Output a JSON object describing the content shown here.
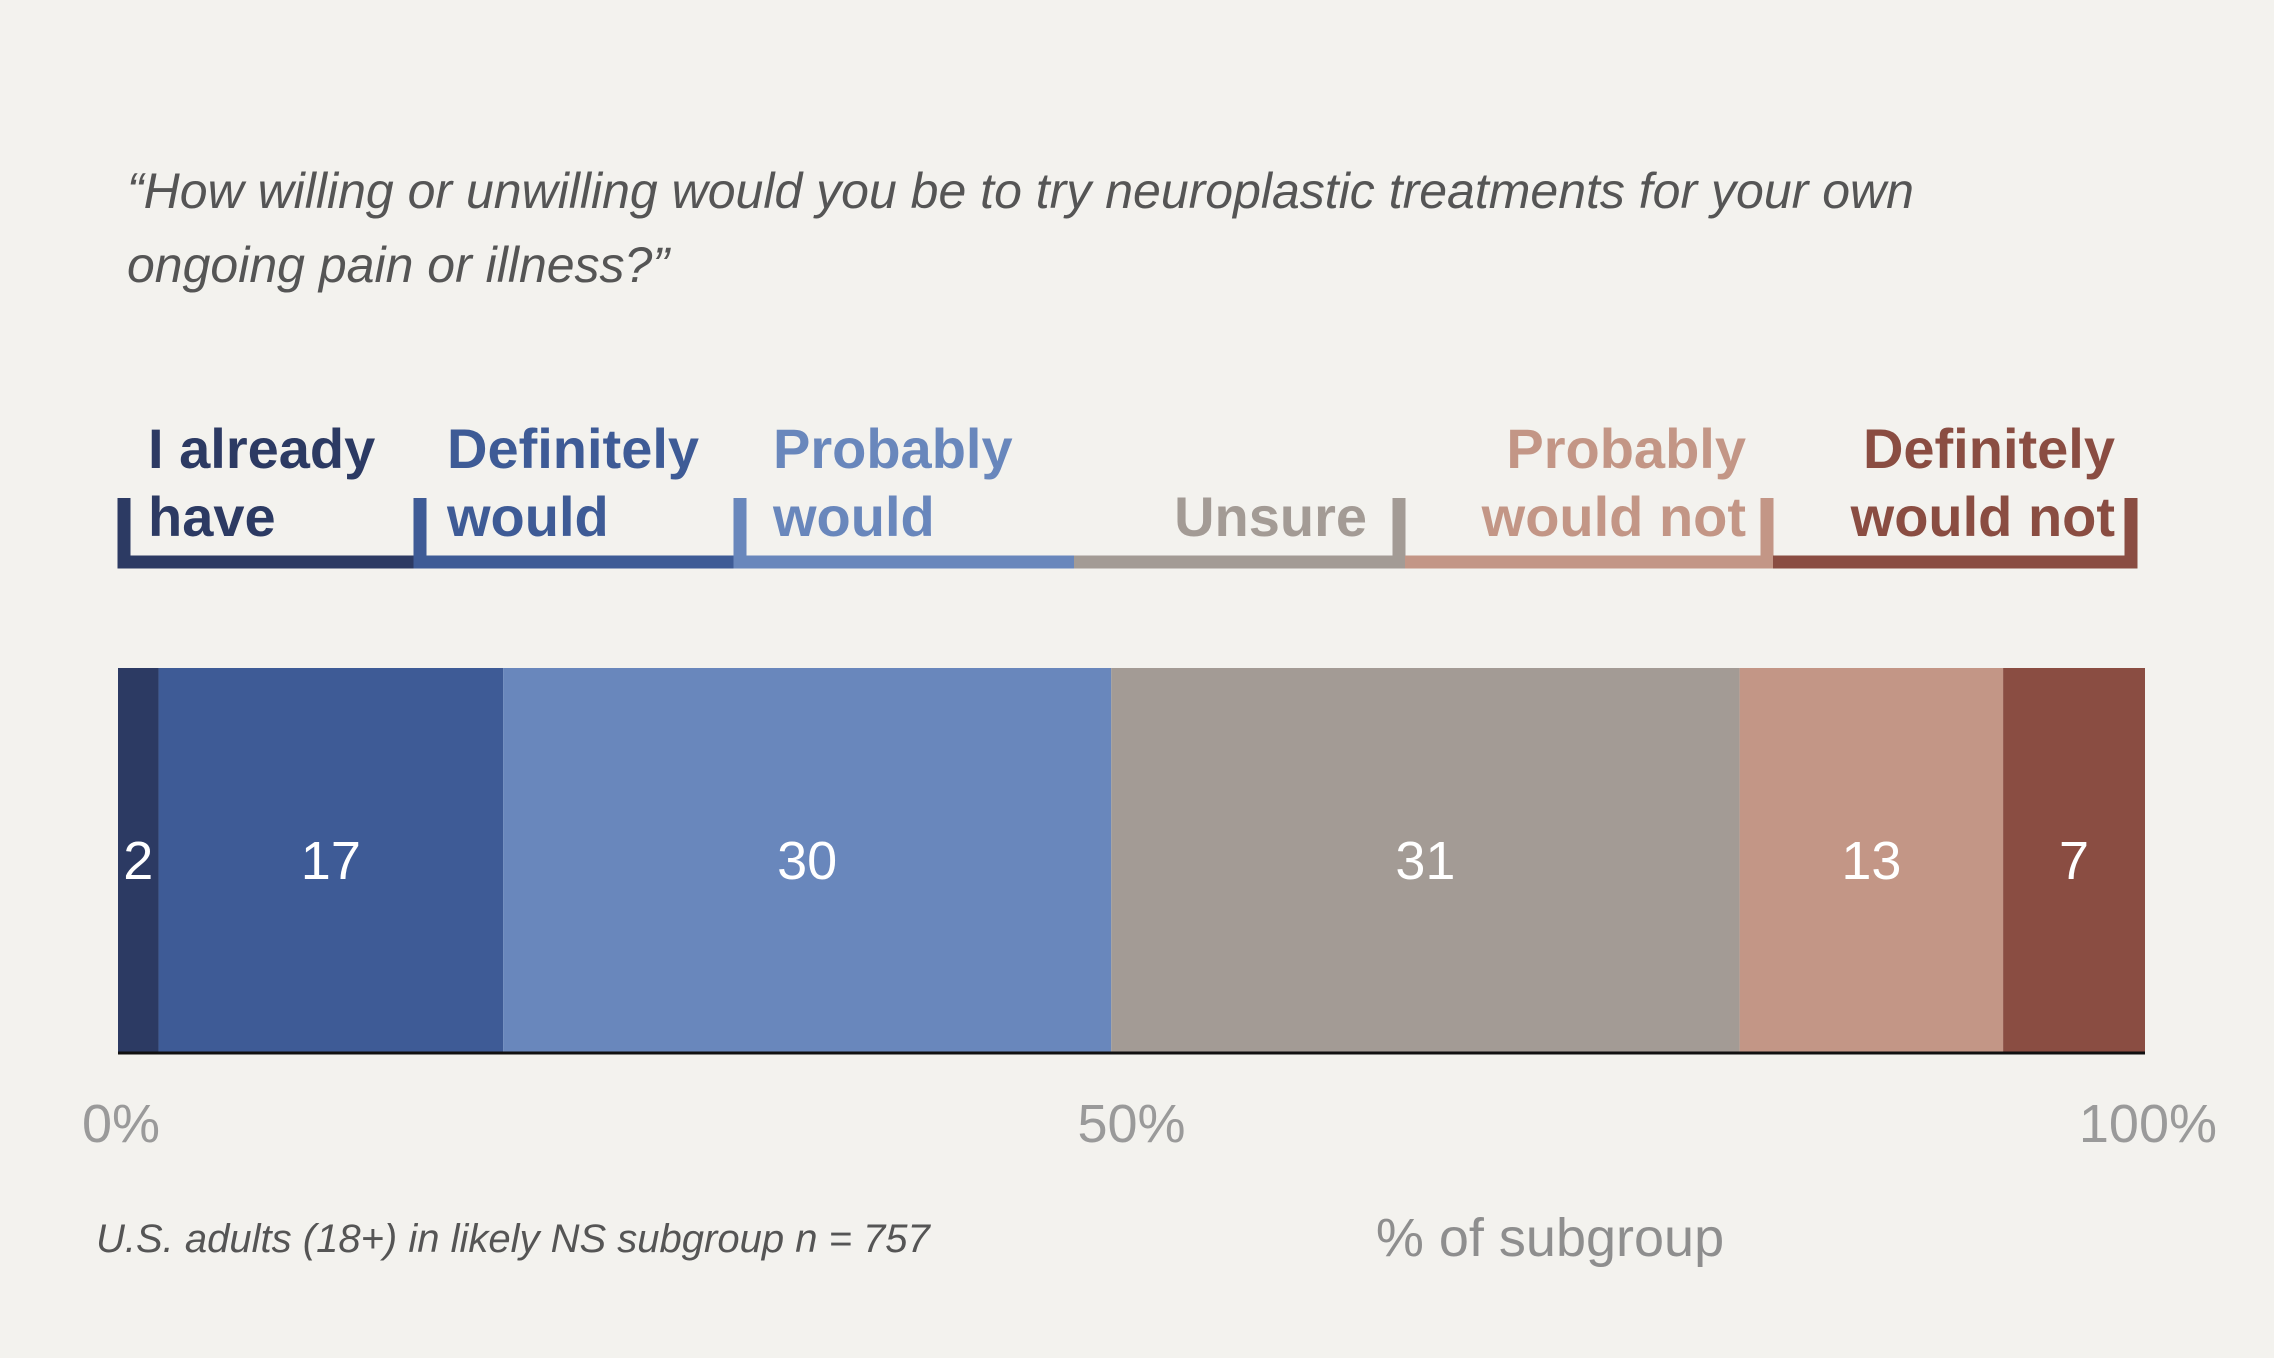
{
  "chart_data": {
    "type": "bar",
    "orientation": "horizontal-stacked",
    "title_lines": [
      "“How willing or unwilling would you be to try neuroplastic treatments for your own",
      "ongoing pain or illness?”"
    ],
    "categories": [
      {
        "name_lines": [
          "I already",
          "have"
        ],
        "value": 2,
        "color": "#2c3a63"
      },
      {
        "name_lines": [
          "Definitely",
          "would"
        ],
        "value": 17,
        "color": "#3e5b96"
      },
      {
        "name_lines": [
          "Probably",
          "would"
        ],
        "value": 30,
        "color": "#6987bc"
      },
      {
        "name_lines": [
          "Unsure"
        ],
        "value": 31,
        "color": "#a39b95"
      },
      {
        "name_lines": [
          "Probably",
          "would not"
        ],
        "value": 13,
        "color": "#c39686"
      },
      {
        "name_lines": [
          "Definitely",
          "would not"
        ],
        "value": 7,
        "color": "#8a4d42"
      }
    ],
    "xaxis": {
      "ticks": [
        "0%",
        "50%",
        "100%"
      ],
      "tick_values": [
        0,
        50,
        100
      ],
      "title": "% of subgroup",
      "range": [
        0,
        100
      ]
    },
    "footnote": "U.S. adults (18+) in likely NS subgroup n = 757",
    "grid": false,
    "legend": "top, bracket labels above segments"
  }
}
